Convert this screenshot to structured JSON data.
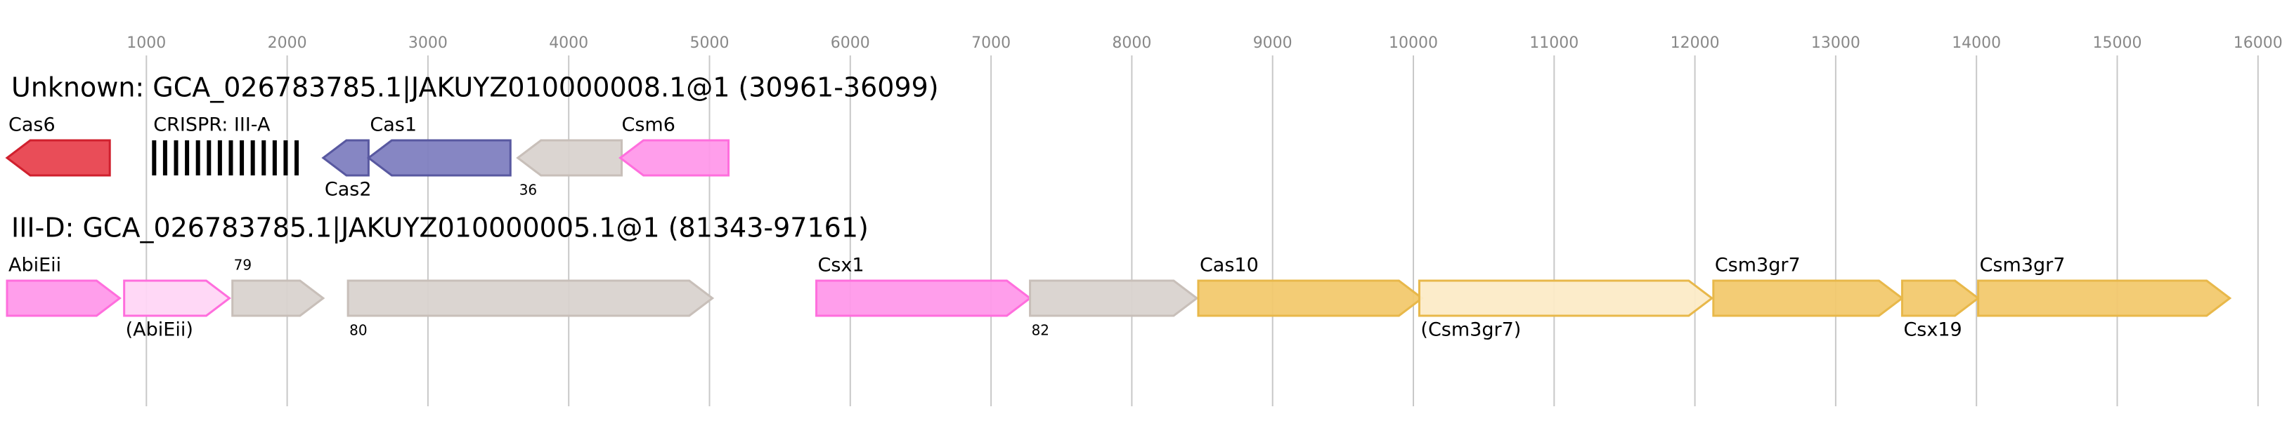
{
  "axis": {
    "ticks": [
      1000,
      2000,
      3000,
      4000,
      5000,
      6000,
      7000,
      8000,
      9000,
      10000,
      11000,
      12000,
      13000,
      14000,
      15000,
      16000
    ]
  },
  "tracks": [
    {
      "title": "Unknown: GCA_026783785.1|JAKUYZ010000008.1@1 (30961-36099)",
      "genes": [
        {
          "label": "Cas6",
          "start": 10,
          "end": 740,
          "strand": "-",
          "color": "#d0202e",
          "fill": "#e8434f",
          "label_side": "above"
        },
        {
          "label": "CRISPR: III-A",
          "start": 1040,
          "end": 2130,
          "strand": "crispr",
          "color": "#000000",
          "fill": "#000000",
          "label_side": "above"
        },
        {
          "label": "Cas2",
          "start": 2256,
          "end": 2578,
          "strand": "-",
          "color": "#5858a0",
          "fill": "#8080c0",
          "label_side": "below"
        },
        {
          "label": "Cas1",
          "start": 2578,
          "end": 3586,
          "strand": "-",
          "color": "#5858a0",
          "fill": "#8080c0",
          "label_side": "above"
        },
        {
          "label": "36",
          "start": 3638,
          "end": 4376,
          "strand": "-",
          "color": "#c8bfb9",
          "fill": "#d9d3cf",
          "label_side": "below"
        },
        {
          "label": "Csm6",
          "start": 4366,
          "end": 5135,
          "strand": "-",
          "color": "#ff6edd",
          "fill": "#ff99ea",
          "label_side": "above"
        }
      ]
    },
    {
      "title": "III-D: GCA_026783785.1|JAKUYZ010000005.1@1 (81343-97161)",
      "genes": [
        {
          "label": "AbiEii",
          "start": 10,
          "end": 811,
          "strand": "+",
          "color": "#ff6edd",
          "fill": "#ff99ea",
          "label_side": "above"
        },
        {
          "label": "(AbiEii)",
          "start": 842,
          "end": 1590,
          "strand": "+",
          "color": "#ff6edd",
          "fill": "#ffd6f6",
          "label_side": "below"
        },
        {
          "label": "79",
          "start": 1611,
          "end": 2256,
          "strand": "+",
          "color": "#c8bfb9",
          "fill": "#d9d3cf",
          "label_side": "above"
        },
        {
          "label": "80",
          "start": 2432,
          "end": 5021,
          "strand": "+",
          "color": "#c8bfb9",
          "fill": "#d9d3cf",
          "label_side": "below"
        },
        {
          "label": "Csx1",
          "start": 5759,
          "end": 7277,
          "strand": "+",
          "color": "#ff6edd",
          "fill": "#ff99ea",
          "label_side": "above"
        },
        {
          "label": "82",
          "start": 7277,
          "end": 8462,
          "strand": "+",
          "color": "#c8bfb9",
          "fill": "#d9d3cf",
          "label_side": "below"
        },
        {
          "label": "Cas10",
          "start": 8472,
          "end": 10062,
          "strand": "+",
          "color": "#e8b84a",
          "fill": "#f2c96e",
          "label_side": "above"
        },
        {
          "label": "(Csm3gr7)",
          "start": 10042,
          "end": 12121,
          "strand": "+",
          "color": "#e8b84a",
          "fill": "#fcebc7",
          "label_side": "below"
        },
        {
          "label": "Csm3gr7",
          "start": 12131,
          "end": 13472,
          "strand": "+",
          "color": "#e8b84a",
          "fill": "#f2c96e",
          "label_side": "above"
        },
        {
          "label": "Csx19",
          "start": 13472,
          "end": 14012,
          "strand": "+",
          "color": "#e8b84a",
          "fill": "#f2c96e",
          "label_side": "below"
        },
        {
          "label": "Csm3gr7",
          "start": 14012,
          "end": 15800,
          "strand": "+",
          "color": "#e8b84a",
          "fill": "#f2c96e",
          "label_side": "above"
        }
      ]
    }
  ]
}
